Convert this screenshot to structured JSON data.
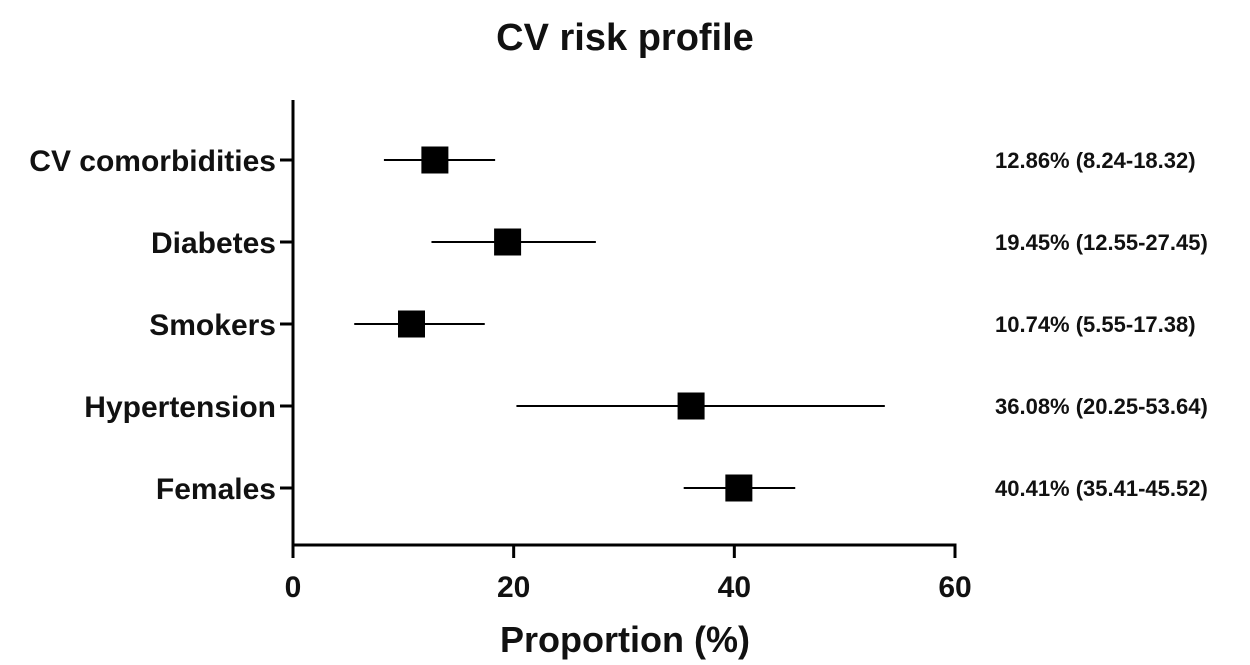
{
  "chart_data": {
    "type": "forest",
    "title": "CV risk profile",
    "xlabel": "Proportion (%)",
    "ylabel": "",
    "xlim": [
      0,
      60
    ],
    "xticks": [
      0,
      20,
      40,
      60
    ],
    "grid": false,
    "legend": "none",
    "marker_color": "#000000",
    "rows": [
      {
        "label": "CV comorbidities",
        "value": 12.86,
        "ci_low": 8.24,
        "ci_high": 18.32,
        "annotation": "12.86% (8.24-18.32)"
      },
      {
        "label": "Diabetes",
        "value": 19.45,
        "ci_low": 12.55,
        "ci_high": 27.45,
        "annotation": "19.45% (12.55-27.45)"
      },
      {
        "label": "Smokers",
        "value": 10.74,
        "ci_low": 5.55,
        "ci_high": 17.38,
        "annotation": "10.74% (5.55-17.38)"
      },
      {
        "label": "Hypertension",
        "value": 36.08,
        "ci_low": 20.25,
        "ci_high": 53.64,
        "annotation": "36.08% (20.25-53.64)"
      },
      {
        "label": "Females",
        "value": 40.41,
        "ci_low": 35.41,
        "ci_high": 45.52,
        "annotation": "40.41% (35.41-45.52)"
      }
    ]
  }
}
